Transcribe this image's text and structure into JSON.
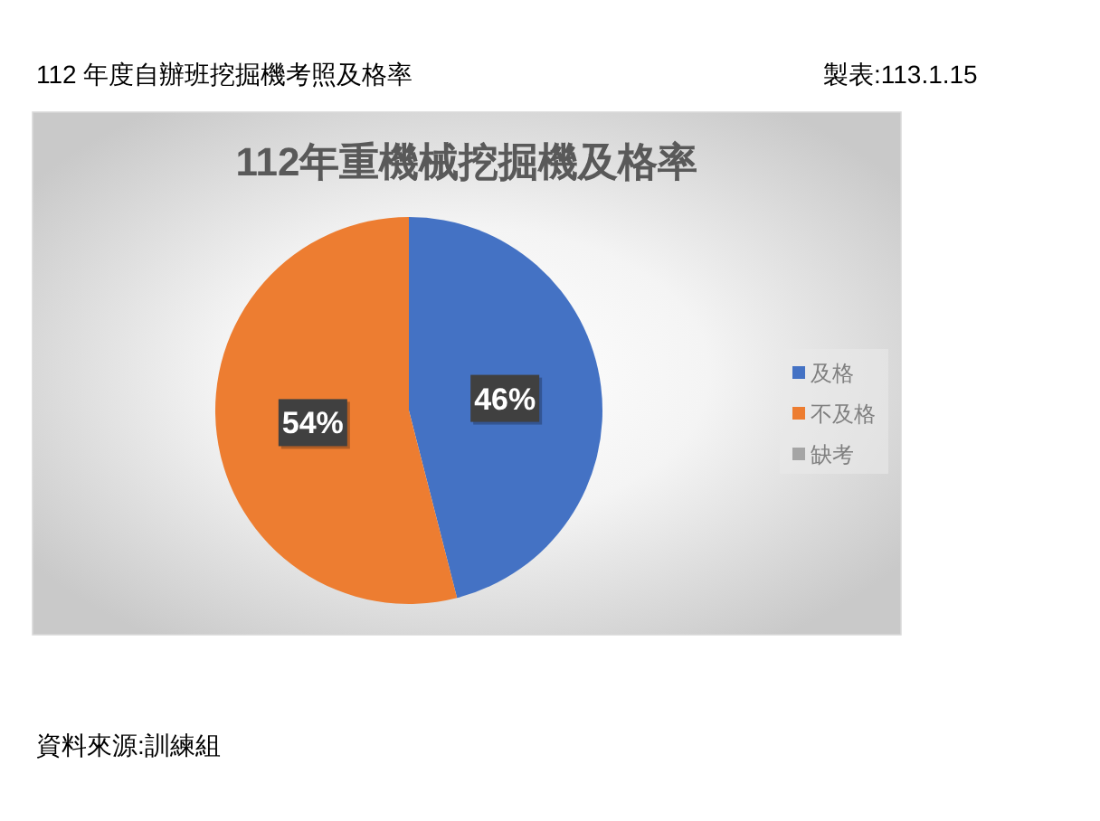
{
  "chart_data": {
    "type": "pie",
    "title": "112年重機械挖掘機及格率",
    "annotations": [
      "112 年度自辦班挖掘機考照及格率",
      "製表:113.1.15",
      "資料來源:訓練組"
    ],
    "categories": [
      "及格",
      "不及格",
      "缺考"
    ],
    "values": [
      46,
      54,
      0
    ],
    "colors": [
      "#4472c4",
      "#ed7d31",
      "#a5a5a5"
    ],
    "value_labels": [
      "46%",
      "54%",
      null
    ],
    "legend": "right"
  }
}
